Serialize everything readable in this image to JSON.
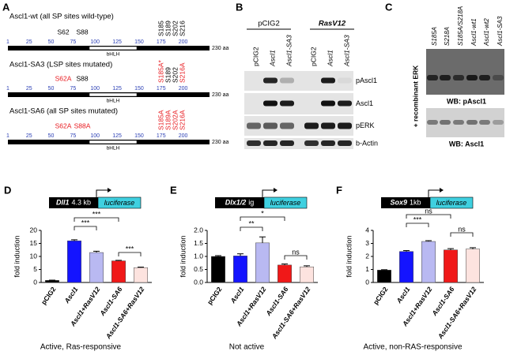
{
  "panel_a": {
    "letter": "A",
    "scale": [
      1,
      25,
      50,
      75,
      100,
      125,
      150,
      175,
      200
    ],
    "scale_end": "230 aa",
    "domain": "bHLH",
    "constructs": [
      {
        "title": "Ascl1-wt (all SP sites wild-type)",
        "sites": [
          {
            "label": "S62",
            "color": "#000000"
          },
          {
            "label": "S88",
            "color": "#000000"
          },
          {
            "label": "S185",
            "color": "#000000"
          },
          {
            "label": "S189",
            "color": "#000000"
          },
          {
            "label": "S202",
            "color": "#000000"
          },
          {
            "label": "S216",
            "color": "#000000"
          }
        ]
      },
      {
        "title": "Ascl1-SA3 (LSP sites mutated)",
        "sites": [
          {
            "label": "S62A",
            "color": "#e8191e"
          },
          {
            "label": "S88",
            "color": "#000000"
          },
          {
            "label": "S185A*",
            "color": "#e8191e"
          },
          {
            "label": "S189",
            "color": "#000000"
          },
          {
            "label": "S202",
            "color": "#000000"
          },
          {
            "label": "S216A",
            "color": "#e8191e"
          }
        ]
      },
      {
        "title": "Ascl1-SA6 (all SP sites mutated)",
        "sites": [
          {
            "label": "S62A",
            "color": "#e8191e"
          },
          {
            "label": "S88A",
            "color": "#e8191e"
          },
          {
            "label": "S185A",
            "color": "#e8191e"
          },
          {
            "label": "S189A",
            "color": "#e8191e"
          },
          {
            "label": "S202A",
            "color": "#e8191e"
          },
          {
            "label": "S216A",
            "color": "#e8191e"
          }
        ]
      }
    ]
  },
  "panel_b": {
    "letter": "B",
    "groups": [
      "pCIG2",
      "RasV12"
    ],
    "lanes": [
      "pCIG2",
      "Ascl1",
      "Ascl1-SA3",
      "pCIG2",
      "Ascl1",
      "Ascl1-SA3"
    ],
    "rows": [
      "pAscl1",
      "Ascl1",
      "pERK",
      "b-Actin"
    ]
  },
  "panel_c": {
    "letter": "C",
    "lanes": [
      "S185A",
      "S218A",
      "S185A/S218A",
      "Ascl1-wt1",
      "Ascl1-wt2",
      "Ascl1-SA3"
    ],
    "treatment": "+ recombinant ERK",
    "blots": [
      "WB: pAscl1",
      "WB: Ascl1"
    ]
  },
  "chart_data": [
    {
      "type": "bar",
      "letter": "D",
      "promoter": "Dll1",
      "promoter_size": "4.3 kb",
      "reporter": "luciferase",
      "ylabel": "fold induction",
      "caption": "Active, Ras-responsive",
      "categories": [
        "pCIG2",
        "Ascl1",
        "Ascl1+RasV12",
        "Ascl1-SA6",
        "Ascl1-SA6+RasV12"
      ],
      "values": [
        0.8,
        16,
        11.5,
        8.3,
        5.7
      ],
      "errors": [
        0.1,
        0.4,
        0.5,
        0.2,
        0.2
      ],
      "colors": [
        "#000000",
        "#1414ff",
        "#b9b9f2",
        "#f01818",
        "#fde3df"
      ],
      "ylim": [
        0,
        20
      ],
      "yticks": [
        0,
        5,
        10,
        15,
        20
      ],
      "comparisons": [
        {
          "label": "***"
        },
        {
          "label": "***"
        },
        {
          "label": "***"
        }
      ]
    },
    {
      "type": "bar",
      "letter": "E",
      "promoter": "Dlx1/2",
      "promoter_size": "ig",
      "reporter": "luciferase",
      "ylabel": "fold induction",
      "caption": "Not active",
      "categories": [
        "pCIG2",
        "Ascl1",
        "Ascl1+RasV12",
        "Ascl1-SA6",
        "Ascl1-SA6+RasV12"
      ],
      "values": [
        1.0,
        1.02,
        1.52,
        0.67,
        0.6
      ],
      "errors": [
        0.03,
        0.08,
        0.23,
        0.04,
        0.04
      ],
      "colors": [
        "#000000",
        "#1414ff",
        "#b9b9f2",
        "#f01818",
        "#fde3df"
      ],
      "ylim": [
        0,
        2
      ],
      "yticks": [
        {
          "value": 0,
          "label": "0.0"
        },
        0.5,
        {
          "value": 1,
          "label": "1.0"
        },
        1.5,
        {
          "value": 2,
          "label": "2.0"
        }
      ],
      "comparisons": [
        {
          "label": "**"
        },
        {
          "label": "*"
        },
        {
          "label": "ns"
        }
      ]
    },
    {
      "type": "bar",
      "letter": "F",
      "promoter": "Sox9",
      "promoter_size": "1kb",
      "reporter": "luciferase",
      "ylabel": "fold induction",
      "caption": "Active, non-RAS-responsive",
      "categories": [
        "pCIG2",
        "Ascl1",
        "Ascl1+RasV12",
        "Ascl1-SA6",
        "Ascl1-SA6+RasV12"
      ],
      "values": [
        0.95,
        2.38,
        3.15,
        2.5,
        2.57
      ],
      "errors": [
        0.03,
        0.07,
        0.06,
        0.1,
        0.1
      ],
      "colors": [
        "#000000",
        "#1414ff",
        "#b9b9f2",
        "#f01818",
        "#fde3df"
      ],
      "ylim": [
        0,
        4
      ],
      "yticks": [
        0,
        1,
        2,
        3,
        4
      ],
      "comparisons": [
        {
          "label": "***"
        },
        {
          "label": "ns"
        },
        {
          "label": "ns"
        }
      ]
    }
  ]
}
